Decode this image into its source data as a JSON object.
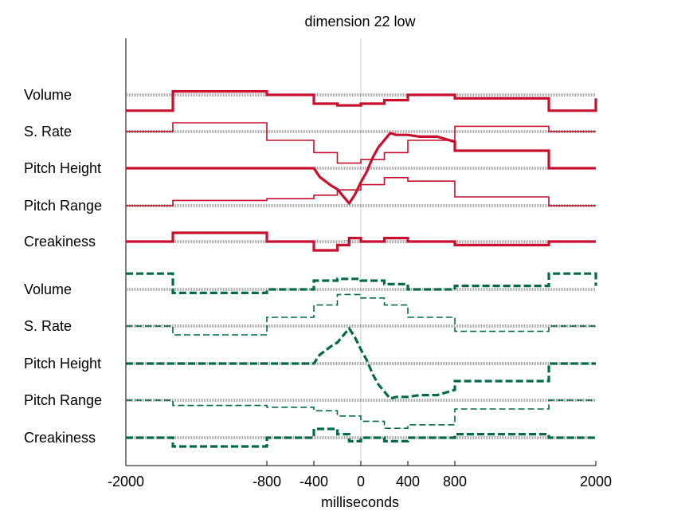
{
  "chart_data": {
    "type": "line",
    "title": "dimension 22 low",
    "xlabel": "milliseconds",
    "ylabel": "",
    "xlim": [
      -2000,
      2000
    ],
    "xticks": [
      -2000,
      -800,
      -400,
      0,
      400,
      800,
      2000
    ],
    "xtick_labels": [
      "-2000",
      "-800",
      "-400",
      "0",
      "400",
      "800",
      "2000"
    ],
    "grid": false,
    "legend": "none",
    "colors": {
      "red": "#c8102e",
      "green": "#006b45",
      "baseline": "#555555",
      "zero_line": "#cccccc"
    },
    "groups": [
      {
        "color": "red",
        "style": "solid",
        "series": [
          {
            "name": "Volume",
            "width": "thick",
            "x": [
              -2000,
              -1600,
              -1600,
              -800,
              -800,
              -400,
              -400,
              -200,
              -200,
              0,
              0,
              200,
              200,
              400,
              400,
              800,
              800,
              1600,
              1600,
              2000,
              2000
            ],
            "y": [
              -0.09,
              -0.09,
              0.02,
              0.02,
              0,
              0,
              -0.05,
              -0.05,
              -0.06,
              -0.06,
              -0.05,
              -0.05,
              -0.03,
              -0.03,
              0,
              0,
              -0.02,
              -0.02,
              -0.09,
              -0.09,
              -0.02
            ]
          },
          {
            "name": "S. Rate",
            "width": "thin",
            "x": [
              -2000,
              -1600,
              -1600,
              -800,
              -800,
              -400,
              -400,
              -200,
              -200,
              0,
              0,
              200,
              200,
              400,
              400,
              800,
              800,
              1600,
              1600,
              2000
            ],
            "y": [
              0,
              0,
              0.05,
              0.05,
              -0.05,
              -0.05,
              -0.12,
              -0.12,
              -0.18,
              -0.18,
              -0.16,
              -0.16,
              -0.12,
              -0.12,
              -0.05,
              -0.05,
              0.03,
              0.03,
              0,
              0
            ]
          },
          {
            "name": "Pitch Height",
            "width": "thick",
            "x": [
              -2000,
              -400,
              -350,
              -250,
              -200,
              -150,
              -100,
              -50,
              0,
              50,
              100,
              150,
              200,
              250,
              300,
              400,
              500,
              650,
              800,
              800,
              1600,
              1600,
              2000
            ],
            "y": [
              0,
              0,
              -0.05,
              -0.1,
              -0.12,
              -0.16,
              -0.2,
              -0.15,
              -0.08,
              -0.02,
              0.06,
              0.12,
              0.16,
              0.2,
              0.19,
              0.19,
              0.18,
              0.18,
              0.15,
              0.1,
              0.1,
              0,
              0
            ]
          },
          {
            "name": "Pitch Range",
            "width": "thin",
            "x": [
              -2000,
              -1600,
              -1600,
              -800,
              -800,
              -400,
              -400,
              -200,
              -200,
              0,
              0,
              200,
              200,
              400,
              400,
              800,
              800,
              1600,
              1600,
              2000
            ],
            "y": [
              0,
              0,
              0.03,
              0.03,
              0.04,
              0.04,
              0.06,
              0.06,
              0.09,
              0.09,
              0.12,
              0.12,
              0.16,
              0.16,
              0.14,
              0.14,
              0.05,
              0.05,
              0,
              0
            ]
          },
          {
            "name": "Creakiness",
            "width": "thick",
            "x": [
              -2000,
              -1600,
              -1600,
              -800,
              -800,
              -400,
              -400,
              -200,
              -200,
              -100,
              -100,
              0,
              0,
              200,
              200,
              400,
              400,
              800,
              800,
              1600,
              1600,
              2000
            ],
            "y": [
              0,
              0,
              0.05,
              0.05,
              0,
              0,
              -0.05,
              -0.05,
              -0.02,
              -0.02,
              0.02,
              0.02,
              0,
              0,
              0.02,
              0.02,
              0,
              0,
              -0.02,
              -0.02,
              0,
              0
            ]
          }
        ]
      },
      {
        "color": "green",
        "style": "dashed",
        "series": [
          {
            "name": "Volume",
            "width": "thick",
            "x": [
              -2000,
              -1600,
              -1600,
              -800,
              -800,
              -400,
              -400,
              -200,
              -200,
              0,
              0,
              200,
              200,
              400,
              400,
              800,
              800,
              1600,
              1600,
              2000,
              2000
            ],
            "y": [
              0.09,
              0.09,
              -0.02,
              -0.02,
              0,
              0,
              0.05,
              0.05,
              0.06,
              0.06,
              0.05,
              0.05,
              0.03,
              0.03,
              0,
              0,
              0.02,
              0.02,
              0.09,
              0.09,
              0.02
            ]
          },
          {
            "name": "S. Rate",
            "width": "thin",
            "x": [
              -2000,
              -1600,
              -1600,
              -800,
              -800,
              -400,
              -400,
              -200,
              -200,
              0,
              0,
              200,
              200,
              400,
              400,
              800,
              800,
              1600,
              1600,
              2000
            ],
            "y": [
              0,
              0,
              -0.05,
              -0.05,
              0.05,
              0.05,
              0.12,
              0.12,
              0.18,
              0.18,
              0.16,
              0.16,
              0.12,
              0.12,
              0.05,
              0.05,
              -0.03,
              -0.03,
              0,
              0
            ]
          },
          {
            "name": "Pitch Height",
            "width": "thick",
            "x": [
              -2000,
              -400,
              -350,
              -250,
              -200,
              -150,
              -100,
              -50,
              0,
              50,
              100,
              150,
              200,
              250,
              300,
              400,
              500,
              650,
              800,
              800,
              1600,
              1600,
              2000
            ],
            "y": [
              0,
              0,
              0.05,
              0.1,
              0.12,
              0.16,
              0.2,
              0.15,
              0.08,
              0.02,
              -0.06,
              -0.12,
              -0.16,
              -0.2,
              -0.19,
              -0.19,
              -0.18,
              -0.18,
              -0.15,
              -0.1,
              -0.1,
              0,
              0
            ]
          },
          {
            "name": "Pitch Range",
            "width": "thin",
            "x": [
              -2000,
              -1600,
              -1600,
              -800,
              -800,
              -400,
              -400,
              -200,
              -200,
              0,
              0,
              200,
              200,
              400,
              400,
              800,
              800,
              1600,
              1600,
              2000
            ],
            "y": [
              0,
              0,
              -0.03,
              -0.03,
              -0.04,
              -0.04,
              -0.06,
              -0.06,
              -0.09,
              -0.09,
              -0.12,
              -0.12,
              -0.16,
              -0.16,
              -0.14,
              -0.14,
              -0.05,
              -0.05,
              0,
              0
            ]
          },
          {
            "name": "Creakiness",
            "width": "thick",
            "x": [
              -2000,
              -1600,
              -1600,
              -800,
              -800,
              -400,
              -400,
              -200,
              -200,
              -100,
              -100,
              0,
              0,
              200,
              200,
              400,
              400,
              800,
              800,
              1600,
              1600,
              2000
            ],
            "y": [
              0,
              0,
              -0.05,
              -0.05,
              0,
              0,
              0.05,
              0.05,
              0.02,
              0.02,
              -0.02,
              -0.02,
              0,
              0,
              -0.02,
              -0.02,
              0,
              0,
              0.02,
              0.02,
              0,
              0
            ]
          }
        ]
      }
    ]
  }
}
